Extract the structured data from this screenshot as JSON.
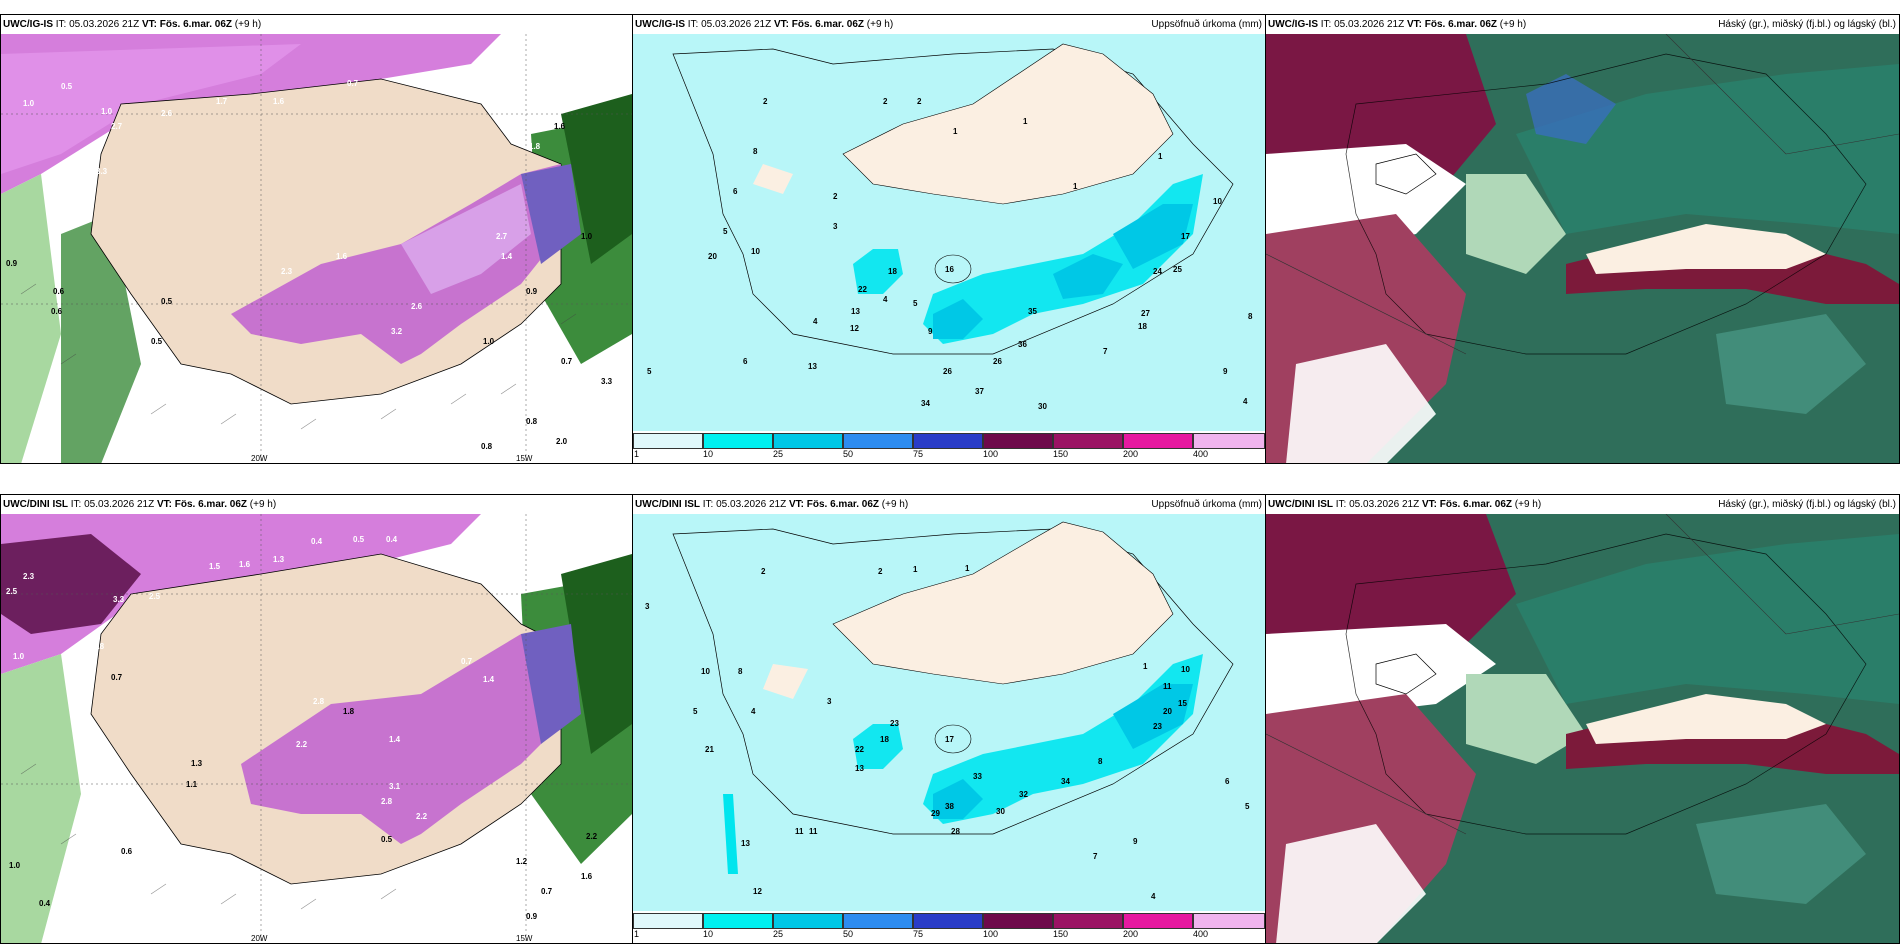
{
  "rows": [
    {
      "panels": [
        {
          "model": "UWC/IG-IS",
          "it_label": "IT:",
          "it_value": "05.03.2026 21Z",
          "vt_label": "VT:",
          "vt_value": "Fös. 6.mar. 06Z",
          "lead": "(+9 h)",
          "title_right": ""
        },
        {
          "model": "UWC/IG-IS",
          "it_label": "IT:",
          "it_value": "05.03.2026 21Z",
          "vt_label": "VT:",
          "vt_value": "Fös. 6.mar. 06Z",
          "lead": "(+9 h)",
          "title_right": "Uppsöfnuð úrkoma (mm)"
        },
        {
          "model": "UWC/IG-IS",
          "it_label": "IT:",
          "it_value": "05.03.2026 21Z",
          "vt_label": "VT:",
          "vt_value": "Fös. 6.mar. 06Z",
          "lead": "(+9 h)",
          "title_right": "Háský (gr.), miðský (fj.bl.) og lágský (bl.)"
        }
      ]
    },
    {
      "panels": [
        {
          "model": "UWC/DINI ISL",
          "it_label": "IT:",
          "it_value": "05.03.2026 21Z",
          "vt_label": "VT:",
          "vt_value": "Fös. 6.mar. 06Z",
          "lead": "(+9 h)",
          "title_right": ""
        },
        {
          "model": "UWC/DINI ISL",
          "it_label": "IT:",
          "it_value": "05.03.2026 21Z",
          "vt_label": "VT:",
          "vt_value": "Fös. 6.mar. 06Z",
          "lead": "(+9 h)",
          "title_right": "Uppsöfnuð úrkoma (mm)"
        },
        {
          "model": "UWC/DINI ISL",
          "it_label": "IT:",
          "it_value": "05.03.2026 21Z",
          "vt_label": "VT:",
          "vt_value": "Fös. 6.mar. 06Z",
          "lead": "(+9 h)",
          "title_right": "Háský (gr.), miðský (fj.bl.) og lágský (bl.)"
        }
      ]
    }
  ],
  "precip_colorbar": {
    "ticks": [
      "1",
      "10",
      "25",
      "50",
      "75",
      "100",
      "150",
      "200",
      "400"
    ],
    "colors": [
      "#e0f8fb",
      "#00f0f0",
      "#00c8e6",
      "#2d8cf0",
      "#2a3cc8",
      "#6e0a4b",
      "#9b1464",
      "#e619a0",
      "#f0b4ee"
    ]
  },
  "snow_map_labels": {
    "row1": [
      "1.0",
      "0.5",
      "1.0",
      "2.7",
      "2.6",
      "2.2",
      "3.3",
      "1.8",
      "1.7",
      "1.6",
      "0.7",
      "1.8",
      "0.9",
      "0.6",
      "0.6",
      "0.5",
      "0.5",
      "2.7",
      "1.4",
      "2.3",
      "1.6",
      "3.2",
      "2.6",
      "1.0",
      "0.9",
      "0.5",
      "1.6",
      "1.0",
      "0.7",
      "0.8",
      "3.3",
      "2.0",
      "0.8"
    ],
    "row2": [
      "2.5",
      "2.3",
      "3.3",
      "2.5",
      "1.0",
      "1.8",
      "1.5",
      "1.6",
      "1.3",
      "0.4",
      "0.5",
      "0.4",
      "0.7",
      "1.4",
      "2.8",
      "2.2",
      "1.8",
      "1.4",
      "3.1",
      "2.8",
      "2.2",
      "0.5",
      "1.3",
      "1.1",
      "0.6",
      "1.0",
      "0.4",
      "0.7",
      "0.9",
      "2.2",
      "1.6",
      "0.7",
      "1.2"
    ]
  },
  "lon_labels": [
    "20W",
    "15W"
  ],
  "precip_map_labels": {
    "row1": [
      "2",
      "2",
      "2",
      "1",
      "1",
      "8",
      "6",
      "5",
      "4",
      "3",
      "2",
      "1",
      "1",
      "20",
      "10",
      "26",
      "18",
      "22",
      "13",
      "12",
      "16",
      "4",
      "5",
      "9",
      "13",
      "26",
      "36",
      "35",
      "24",
      "25",
      "27",
      "18",
      "17",
      "12",
      "10",
      "9",
      "8",
      "7",
      "6",
      "5",
      "4",
      "34",
      "37",
      "30"
    ],
    "row2": [
      "2",
      "2",
      "1",
      "1",
      "3",
      "10",
      "8",
      "5",
      "4",
      "3",
      "21",
      "23",
      "18",
      "22",
      "13",
      "17",
      "11",
      "11",
      "13",
      "12",
      "28",
      "30",
      "32",
      "34",
      "23",
      "20",
      "15",
      "11",
      "10",
      "9",
      "8",
      "7",
      "6",
      "5",
      "4",
      "1",
      "33",
      "38",
      "29"
    ]
  }
}
